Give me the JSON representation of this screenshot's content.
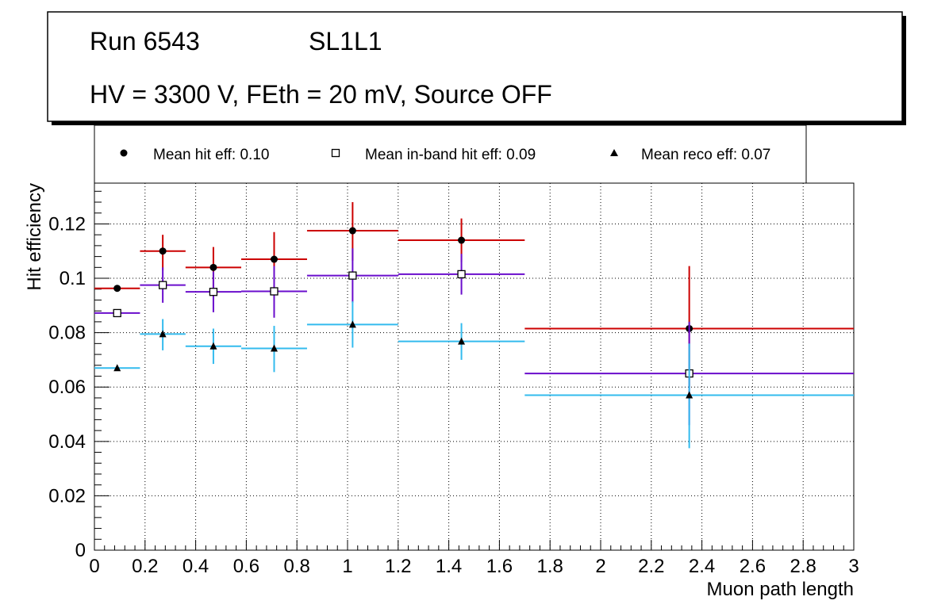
{
  "header": {
    "run": "Run 6543",
    "layer": "SL1L1",
    "conditions": "HV = 3300 V, FEth = 20 mV, Source OFF"
  },
  "chart_data": {
    "type": "scatter",
    "xlabel": "Muon path length",
    "ylabel": "Hit efficiency",
    "xlim": [
      0,
      3
    ],
    "ylim": [
      0,
      0.135
    ],
    "grid": true,
    "legend_position": "top",
    "x_ticks": [
      "0",
      "0.2",
      "0.4",
      "0.6",
      "0.8",
      "1",
      "1.2",
      "1.4",
      "1.6",
      "1.8",
      "2",
      "2.2",
      "2.4",
      "2.6",
      "2.8",
      "3"
    ],
    "y_ticks": [
      "0",
      "0.02",
      "0.04",
      "0.06",
      "0.08",
      "0.1",
      "0.12"
    ],
    "series": [
      {
        "name": "Mean hit  eff: 0.10",
        "marker": "circle",
        "color": "#cc0000",
        "points": [
          {
            "x": 0.09,
            "xlo": 0.0,
            "xhi": 0.18,
            "y": 0.0963,
            "ylo": 0.0963,
            "yhi": 0.0963
          },
          {
            "x": 0.27,
            "xlo": 0.18,
            "xhi": 0.36,
            "y": 0.11,
            "ylo": 0.103,
            "yhi": 0.116
          },
          {
            "x": 0.47,
            "xlo": 0.36,
            "xhi": 0.58,
            "y": 0.104,
            "ylo": 0.096,
            "yhi": 0.1115
          },
          {
            "x": 0.71,
            "xlo": 0.58,
            "xhi": 0.84,
            "y": 0.107,
            "ylo": 0.0965,
            "yhi": 0.117
          },
          {
            "x": 1.02,
            "xlo": 0.84,
            "xhi": 1.2,
            "y": 0.1175,
            "ylo": 0.1065,
            "yhi": 0.128
          },
          {
            "x": 1.45,
            "xlo": 1.2,
            "xhi": 1.7,
            "y": 0.114,
            "ylo": 0.106,
            "yhi": 0.122
          },
          {
            "x": 2.35,
            "xlo": 1.7,
            "xhi": 3.0,
            "y": 0.0815,
            "ylo": 0.06,
            "yhi": 0.1045
          }
        ]
      },
      {
        "name": "Mean in-band hit eff: 0.09",
        "marker": "open-square",
        "color": "#6a0dcc",
        "points": [
          {
            "x": 0.09,
            "xlo": 0.0,
            "xhi": 0.18,
            "y": 0.0872,
            "ylo": 0.0872,
            "yhi": 0.0872
          },
          {
            "x": 0.27,
            "xlo": 0.18,
            "xhi": 0.36,
            "y": 0.0975,
            "ylo": 0.091,
            "yhi": 0.104
          },
          {
            "x": 0.47,
            "xlo": 0.36,
            "xhi": 0.58,
            "y": 0.095,
            "ylo": 0.0875,
            "yhi": 0.1025
          },
          {
            "x": 0.71,
            "xlo": 0.58,
            "xhi": 0.84,
            "y": 0.0952,
            "ylo": 0.0855,
            "yhi": 0.1045
          },
          {
            "x": 1.02,
            "xlo": 0.84,
            "xhi": 1.2,
            "y": 0.101,
            "ylo": 0.091,
            "yhi": 0.111
          },
          {
            "x": 1.45,
            "xlo": 1.2,
            "xhi": 1.7,
            "y": 0.1015,
            "ylo": 0.094,
            "yhi": 0.109
          },
          {
            "x": 2.35,
            "xlo": 1.7,
            "xhi": 3.0,
            "y": 0.065,
            "ylo": 0.046,
            "yhi": 0.084
          }
        ]
      },
      {
        "name": "Mean reco eff: 0.07",
        "marker": "triangle",
        "color": "#33bbee",
        "points": [
          {
            "x": 0.09,
            "xlo": 0.0,
            "xhi": 0.18,
            "y": 0.067,
            "ylo": 0.067,
            "yhi": 0.067
          },
          {
            "x": 0.27,
            "xlo": 0.18,
            "xhi": 0.36,
            "y": 0.0795,
            "ylo": 0.0735,
            "yhi": 0.085
          },
          {
            "x": 0.47,
            "xlo": 0.36,
            "xhi": 0.58,
            "y": 0.075,
            "ylo": 0.0685,
            "yhi": 0.0815
          },
          {
            "x": 0.71,
            "xlo": 0.58,
            "xhi": 0.84,
            "y": 0.0742,
            "ylo": 0.0655,
            "yhi": 0.0825
          },
          {
            "x": 1.02,
            "xlo": 0.84,
            "xhi": 1.2,
            "y": 0.083,
            "ylo": 0.0745,
            "yhi": 0.0915
          },
          {
            "x": 1.45,
            "xlo": 1.2,
            "xhi": 1.7,
            "y": 0.0768,
            "ylo": 0.07,
            "yhi": 0.0835
          },
          {
            "x": 2.35,
            "xlo": 1.7,
            "xhi": 3.0,
            "y": 0.057,
            "ylo": 0.0375,
            "yhi": 0.076
          }
        ]
      }
    ]
  }
}
